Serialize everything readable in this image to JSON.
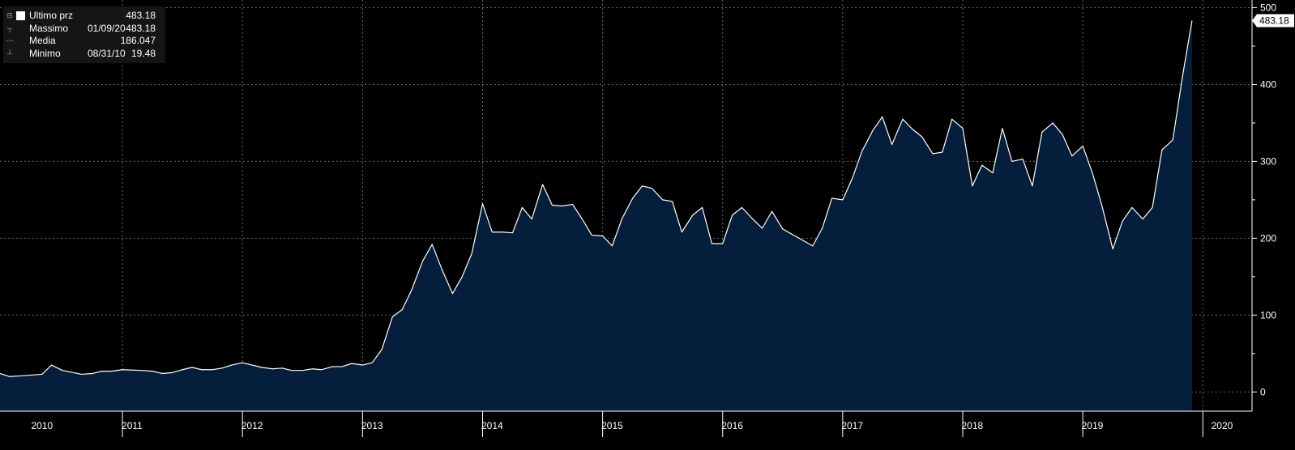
{
  "legend": {
    "items": [
      {
        "label": "Ultimo prz",
        "date": "",
        "value": "483.18"
      },
      {
        "label": "Massimo",
        "date": "01/09/20",
        "value": "483.18"
      },
      {
        "label": "Media",
        "date": "",
        "value": "186.047"
      },
      {
        "label": "Minimo",
        "date": "08/31/10",
        "value": "19.48"
      }
    ]
  },
  "colors": {
    "background": "#000000",
    "area_fill": "#051e3c",
    "line": "#ffffff",
    "grid": "#8a8a8a",
    "legend_background": "#151515"
  },
  "chart_data": {
    "type": "area",
    "title": "",
    "xlabel": "",
    "ylabel": "",
    "x_range": [
      2009.9,
      2020.33
    ],
    "ylim": [
      -25,
      510
    ],
    "y_ticks": [
      0,
      100,
      200,
      300,
      400,
      500
    ],
    "x_ticks": [
      {
        "label": "2010",
        "x": 2010.25
      },
      {
        "label": "2011",
        "x": 2011.0
      },
      {
        "label": "2012",
        "x": 2012.0
      },
      {
        "label": "2013",
        "x": 2013.0
      },
      {
        "label": "2014",
        "x": 2014.0
      },
      {
        "label": "2015",
        "x": 2015.0
      },
      {
        "label": "2016",
        "x": 2016.0
      },
      {
        "label": "2017",
        "x": 2017.0
      },
      {
        "label": "2018",
        "x": 2018.0
      },
      {
        "label": "2019",
        "x": 2019.0
      },
      {
        "label": "2020",
        "x": 2020.08
      }
    ],
    "last_value_label": "483.18",
    "grid": true,
    "series": [
      {
        "values": [
          [
            2009.9,
            24
          ],
          [
            2009.98,
            20
          ],
          [
            2010.08,
            21
          ],
          [
            2010.25,
            23
          ],
          [
            2010.33,
            35
          ],
          [
            2010.42,
            28
          ],
          [
            2010.58,
            23
          ],
          [
            2010.67,
            24
          ],
          [
            2010.75,
            27
          ],
          [
            2010.83,
            27
          ],
          [
            2010.92,
            29
          ],
          [
            2011.08,
            28
          ],
          [
            2011.17,
            27
          ],
          [
            2011.25,
            24
          ],
          [
            2011.33,
            25
          ],
          [
            2011.42,
            29
          ],
          [
            2011.5,
            32
          ],
          [
            2011.58,
            29
          ],
          [
            2011.67,
            29
          ],
          [
            2011.75,
            31
          ],
          [
            2011.83,
            35
          ],
          [
            2011.92,
            38
          ],
          [
            2012.08,
            32
          ],
          [
            2012.17,
            30
          ],
          [
            2012.25,
            31
          ],
          [
            2012.33,
            28
          ],
          [
            2012.42,
            28
          ],
          [
            2012.5,
            30
          ],
          [
            2012.58,
            29
          ],
          [
            2012.67,
            33
          ],
          [
            2012.75,
            33
          ],
          [
            2012.83,
            37
          ],
          [
            2012.92,
            35
          ],
          [
            2013.0,
            38
          ],
          [
            2013.08,
            55
          ],
          [
            2013.17,
            98
          ],
          [
            2013.25,
            107
          ],
          [
            2013.33,
            133
          ],
          [
            2013.42,
            170
          ],
          [
            2013.5,
            192
          ],
          [
            2013.58,
            160
          ],
          [
            2013.67,
            128
          ],
          [
            2013.75,
            150
          ],
          [
            2013.83,
            180
          ],
          [
            2013.92,
            245
          ],
          [
            2014.0,
            208
          ],
          [
            2014.08,
            208
          ],
          [
            2014.17,
            207
          ],
          [
            2014.25,
            240
          ],
          [
            2014.33,
            225
          ],
          [
            2014.42,
            270
          ],
          [
            2014.5,
            243
          ],
          [
            2014.58,
            242
          ],
          [
            2014.67,
            244
          ],
          [
            2014.75,
            225
          ],
          [
            2014.83,
            204
          ],
          [
            2014.92,
            203
          ],
          [
            2015.0,
            190
          ],
          [
            2015.08,
            225
          ],
          [
            2015.17,
            252
          ],
          [
            2015.25,
            268
          ],
          [
            2015.33,
            265
          ],
          [
            2015.42,
            250
          ],
          [
            2015.5,
            248
          ],
          [
            2015.58,
            208
          ],
          [
            2015.67,
            230
          ],
          [
            2015.75,
            240
          ],
          [
            2015.83,
            193
          ],
          [
            2015.92,
            193
          ],
          [
            2016.0,
            230
          ],
          [
            2016.08,
            240
          ],
          [
            2016.17,
            225
          ],
          [
            2016.25,
            213
          ],
          [
            2016.33,
            235
          ],
          [
            2016.42,
            212
          ],
          [
            2016.5,
            205
          ],
          [
            2016.58,
            198
          ],
          [
            2016.67,
            190
          ],
          [
            2016.75,
            213
          ],
          [
            2016.83,
            252
          ],
          [
            2016.92,
            250
          ],
          [
            2017.0,
            278
          ],
          [
            2017.08,
            313
          ],
          [
            2017.17,
            340
          ],
          [
            2017.25,
            358
          ],
          [
            2017.33,
            322
          ],
          [
            2017.42,
            355
          ],
          [
            2017.5,
            342
          ],
          [
            2017.58,
            332
          ],
          [
            2017.67,
            310
          ],
          [
            2017.75,
            312
          ],
          [
            2017.83,
            355
          ],
          [
            2017.92,
            343
          ],
          [
            2018.0,
            268
          ],
          [
            2018.08,
            295
          ],
          [
            2018.17,
            285
          ],
          [
            2018.25,
            343
          ],
          [
            2018.33,
            300
          ],
          [
            2018.42,
            303
          ],
          [
            2018.5,
            268
          ],
          [
            2018.58,
            338
          ],
          [
            2018.67,
            350
          ],
          [
            2018.75,
            335
          ],
          [
            2018.83,
            307
          ],
          [
            2018.92,
            320
          ],
          [
            2019.0,
            285
          ],
          [
            2019.08,
            242
          ],
          [
            2019.17,
            186
          ],
          [
            2019.25,
            222
          ],
          [
            2019.33,
            240
          ],
          [
            2019.42,
            225
          ],
          [
            2019.5,
            240
          ],
          [
            2019.58,
            315
          ],
          [
            2019.67,
            328
          ],
          [
            2019.75,
            410
          ],
          [
            2019.83,
            483.18
          ]
        ]
      }
    ]
  }
}
